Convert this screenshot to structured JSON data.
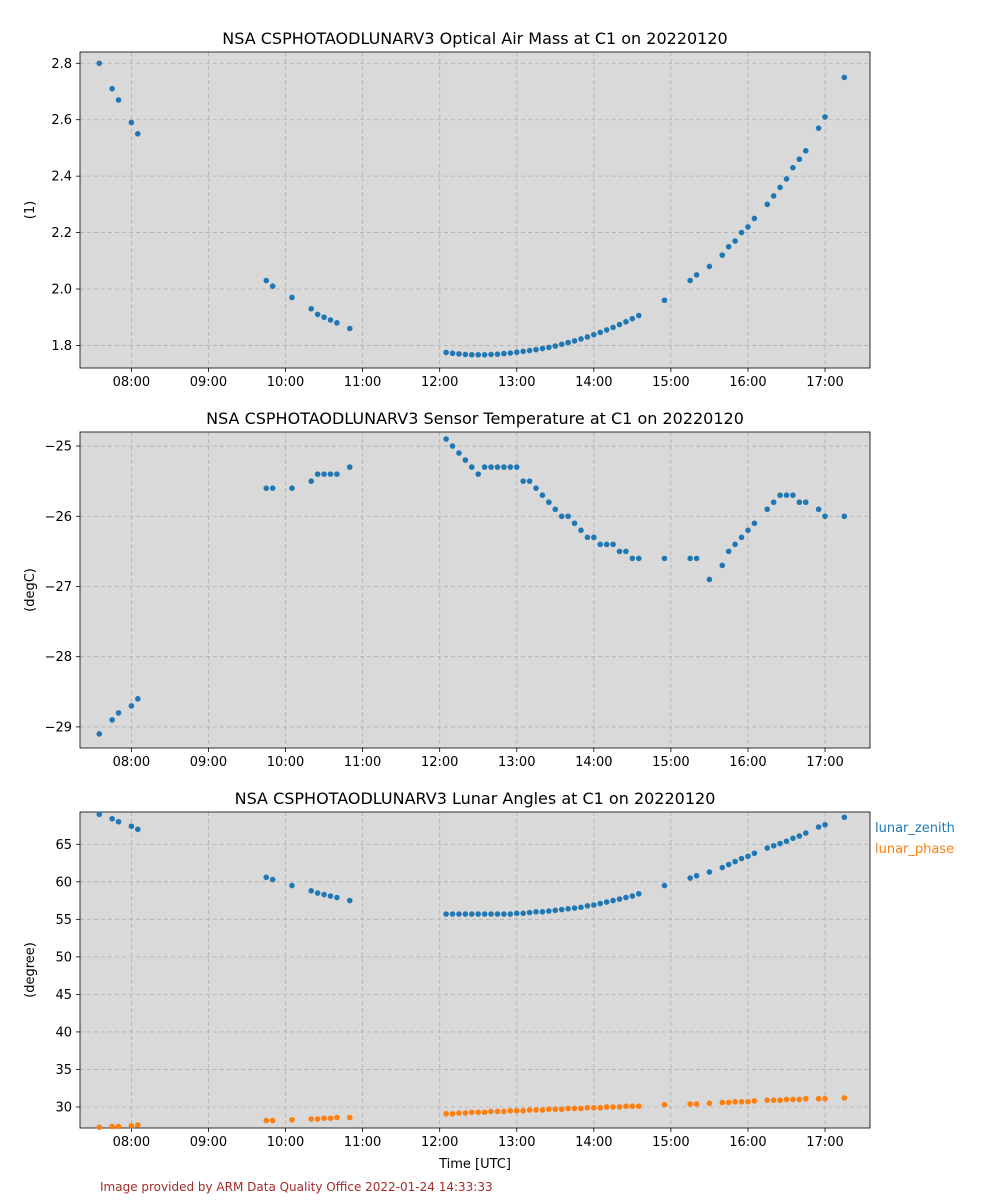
{
  "figure": {
    "credit": "Image provided by ARM Data Quality Office 2022-01-24 14:33:33",
    "background_color": "#ffffff",
    "panel_color": "#d9d9d9",
    "grid_color": "#b0b0b0"
  },
  "chart_data": [
    {
      "type": "scatter",
      "title": "NSA CSPHOTAODLUNARV3 Optical Air Mass at C1 on 20220120",
      "xlabel": "",
      "ylabel": "(1)",
      "xlim": [
        "07:20",
        "17:35"
      ],
      "ylim": [
        1.72,
        2.84
      ],
      "xticks": [
        "08:00",
        "09:00",
        "10:00",
        "11:00",
        "12:00",
        "13:00",
        "14:00",
        "15:00",
        "16:00",
        "17:00"
      ],
      "yticks": [
        "1.8",
        "2.0",
        "2.2",
        "2.4",
        "2.6",
        "2.8"
      ],
      "grid": true,
      "series": [
        {
          "color": "#1f77b4",
          "x": [
            "07:35",
            "07:45",
            "07:50",
            "08:00",
            "08:05",
            "09:45",
            "09:50",
            "10:05",
            "10:20",
            "10:25",
            "10:30",
            "10:35",
            "10:40",
            "10:50",
            "12:05",
            "12:10",
            "12:15",
            "12:20",
            "12:25",
            "12:30",
            "12:35",
            "12:40",
            "12:45",
            "12:50",
            "12:55",
            "13:00",
            "13:05",
            "13:10",
            "13:15",
            "13:20",
            "13:25",
            "13:30",
            "13:35",
            "13:40",
            "13:45",
            "13:50",
            "13:55",
            "14:00",
            "14:05",
            "14:10",
            "14:15",
            "14:20",
            "14:25",
            "14:30",
            "14:35",
            "14:55",
            "15:15",
            "15:20",
            "15:30",
            "15:40",
            "15:45",
            "15:50",
            "15:55",
            "16:00",
            "16:05",
            "16:15",
            "16:20",
            "16:25",
            "16:30",
            "16:35",
            "16:40",
            "16:45",
            "16:55",
            "17:00",
            "17:15"
          ],
          "y": [
            2.8,
            2.71,
            2.67,
            2.59,
            2.55,
            2.03,
            2.01,
            1.97,
            1.93,
            1.91,
            1.9,
            1.89,
            1.88,
            1.86,
            1.775,
            1.772,
            1.77,
            1.768,
            1.767,
            1.767,
            1.767,
            1.768,
            1.769,
            1.771,
            1.773,
            1.776,
            1.779,
            1.782,
            1.785,
            1.789,
            1.793,
            1.798,
            1.804,
            1.81,
            1.816,
            1.823,
            1.83,
            1.838,
            1.846,
            1.855,
            1.864,
            1.874,
            1.884,
            1.895,
            1.906,
            1.96,
            2.03,
            2.05,
            2.08,
            2.12,
            2.15,
            2.17,
            2.2,
            2.22,
            2.25,
            2.3,
            2.33,
            2.36,
            2.39,
            2.43,
            2.46,
            2.49,
            2.57,
            2.61,
            2.75
          ]
        }
      ]
    },
    {
      "type": "scatter",
      "title": "NSA CSPHOTAODLUNARV3 Sensor Temperature at C1 on 20220120",
      "xlabel": "",
      "ylabel": "(degC)",
      "xlim": [
        "07:20",
        "17:35"
      ],
      "ylim": [
        -29.3,
        -24.8
      ],
      "xticks": [
        "08:00",
        "09:00",
        "10:00",
        "11:00",
        "12:00",
        "13:00",
        "14:00",
        "15:00",
        "16:00",
        "17:00"
      ],
      "yticks": [
        "−25",
        "−26",
        "−27",
        "−28",
        "−29"
      ],
      "grid": true,
      "series": [
        {
          "color": "#1f77b4",
          "x": [
            "07:35",
            "07:45",
            "07:50",
            "08:00",
            "08:05",
            "09:45",
            "09:50",
            "10:05",
            "10:20",
            "10:25",
            "10:30",
            "10:35",
            "10:40",
            "10:50",
            "12:05",
            "12:10",
            "12:15",
            "12:20",
            "12:25",
            "12:30",
            "12:35",
            "12:40",
            "12:45",
            "12:50",
            "12:55",
            "13:00",
            "13:05",
            "13:10",
            "13:15",
            "13:20",
            "13:25",
            "13:30",
            "13:35",
            "13:40",
            "13:45",
            "13:50",
            "13:55",
            "14:00",
            "14:05",
            "14:10",
            "14:15",
            "14:20",
            "14:25",
            "14:30",
            "14:35",
            "14:55",
            "15:15",
            "15:20",
            "15:30",
            "15:40",
            "15:45",
            "15:50",
            "15:55",
            "16:00",
            "16:05",
            "16:15",
            "16:20",
            "16:25",
            "16:30",
            "16:35",
            "16:40",
            "16:45",
            "16:55",
            "17:00",
            "17:15"
          ],
          "y": [
            -29.1,
            -28.9,
            -28.8,
            -28.7,
            -28.6,
            -25.6,
            -25.6,
            -25.6,
            -25.5,
            -25.4,
            -25.4,
            -25.4,
            -25.4,
            -25.3,
            -24.9,
            -25.0,
            -25.1,
            -25.2,
            -25.3,
            -25.4,
            -25.3,
            -25.3,
            -25.3,
            -25.3,
            -25.3,
            -25.3,
            -25.5,
            -25.5,
            -25.6,
            -25.7,
            -25.8,
            -25.9,
            -26.0,
            -26.0,
            -26.1,
            -26.2,
            -26.3,
            -26.3,
            -26.4,
            -26.4,
            -26.4,
            -26.5,
            -26.5,
            -26.6,
            -26.6,
            -26.6,
            -26.6,
            -26.6,
            -26.9,
            -26.7,
            -26.5,
            -26.4,
            -26.3,
            -26.2,
            -26.1,
            -25.9,
            -25.8,
            -25.7,
            -25.7,
            -25.7,
            -25.8,
            -25.8,
            -25.9,
            -26.0,
            -26.0
          ]
        }
      ]
    },
    {
      "type": "scatter",
      "title": "NSA CSPHOTAODLUNARV3 Lunar Angles at C1 on 20220120",
      "xlabel": "Time [UTC]",
      "ylabel": "(degree)",
      "xlim": [
        "07:20",
        "17:35"
      ],
      "ylim": [
        27.2,
        69.3
      ],
      "xticks": [
        "08:00",
        "09:00",
        "10:00",
        "11:00",
        "12:00",
        "13:00",
        "14:00",
        "15:00",
        "16:00",
        "17:00"
      ],
      "yticks": [
        "30",
        "35",
        "40",
        "45",
        "50",
        "55",
        "60",
        "65"
      ],
      "grid": true,
      "legend": "outside-right",
      "series": [
        {
          "name": "lunar_zenith",
          "color": "#1f77b4",
          "x": [
            "07:35",
            "07:45",
            "07:50",
            "08:00",
            "08:05",
            "09:45",
            "09:50",
            "10:05",
            "10:20",
            "10:25",
            "10:30",
            "10:35",
            "10:40",
            "10:50",
            "12:05",
            "12:10",
            "12:15",
            "12:20",
            "12:25",
            "12:30",
            "12:35",
            "12:40",
            "12:45",
            "12:50",
            "12:55",
            "13:00",
            "13:05",
            "13:10",
            "13:15",
            "13:20",
            "13:25",
            "13:30",
            "13:35",
            "13:40",
            "13:45",
            "13:50",
            "13:55",
            "14:00",
            "14:05",
            "14:10",
            "14:15",
            "14:20",
            "14:25",
            "14:30",
            "14:35",
            "14:55",
            "15:15",
            "15:20",
            "15:30",
            "15:40",
            "15:45",
            "15:50",
            "15:55",
            "16:00",
            "16:05",
            "16:15",
            "16:20",
            "16:25",
            "16:30",
            "16:35",
            "16:40",
            "16:45",
            "16:55",
            "17:00",
            "17:15"
          ],
          "y": [
            69.0,
            68.4,
            68.0,
            67.4,
            67.0,
            60.6,
            60.3,
            59.5,
            58.8,
            58.5,
            58.3,
            58.1,
            57.9,
            57.5,
            55.7,
            55.7,
            55.7,
            55.7,
            55.7,
            55.7,
            55.7,
            55.7,
            55.7,
            55.7,
            55.7,
            55.8,
            55.8,
            55.9,
            56.0,
            56.0,
            56.1,
            56.2,
            56.3,
            56.4,
            56.5,
            56.6,
            56.8,
            56.9,
            57.1,
            57.3,
            57.5,
            57.7,
            57.9,
            58.1,
            58.4,
            59.5,
            60.5,
            60.8,
            61.3,
            61.9,
            62.3,
            62.7,
            63.1,
            63.4,
            63.8,
            64.5,
            64.8,
            65.1,
            65.4,
            65.8,
            66.1,
            66.5,
            67.3,
            67.6,
            68.6
          ]
        },
        {
          "name": "lunar_phase",
          "color": "#ff7f0e",
          "x": [
            "07:35",
            "07:45",
            "07:50",
            "08:00",
            "08:05",
            "09:45",
            "09:50",
            "10:05",
            "10:20",
            "10:25",
            "10:30",
            "10:35",
            "10:40",
            "10:50",
            "12:05",
            "12:10",
            "12:15",
            "12:20",
            "12:25",
            "12:30",
            "12:35",
            "12:40",
            "12:45",
            "12:50",
            "12:55",
            "13:00",
            "13:05",
            "13:10",
            "13:15",
            "13:20",
            "13:25",
            "13:30",
            "13:35",
            "13:40",
            "13:45",
            "13:50",
            "13:55",
            "14:00",
            "14:05",
            "14:10",
            "14:15",
            "14:20",
            "14:25",
            "14:30",
            "14:35",
            "14:55",
            "15:15",
            "15:20",
            "15:30",
            "15:40",
            "15:45",
            "15:50",
            "15:55",
            "16:00",
            "16:05",
            "16:15",
            "16:20",
            "16:25",
            "16:30",
            "16:35",
            "16:40",
            "16:45",
            "16:55",
            "17:00",
            "17:15"
          ],
          "y": [
            27.3,
            27.4,
            27.4,
            27.5,
            27.6,
            28.2,
            28.2,
            28.3,
            28.4,
            28.4,
            28.5,
            28.5,
            28.6,
            28.6,
            29.1,
            29.1,
            29.2,
            29.2,
            29.3,
            29.3,
            29.3,
            29.4,
            29.4,
            29.4,
            29.5,
            29.5,
            29.5,
            29.6,
            29.6,
            29.6,
            29.7,
            29.7,
            29.7,
            29.8,
            29.8,
            29.8,
            29.9,
            29.9,
            29.9,
            30.0,
            30.0,
            30.0,
            30.1,
            30.1,
            30.1,
            30.3,
            30.4,
            30.4,
            30.5,
            30.6,
            30.6,
            30.7,
            30.7,
            30.7,
            30.8,
            30.9,
            30.9,
            30.9,
            31.0,
            31.0,
            31.0,
            31.1,
            31.1,
            31.1,
            31.2
          ]
        }
      ]
    }
  ]
}
